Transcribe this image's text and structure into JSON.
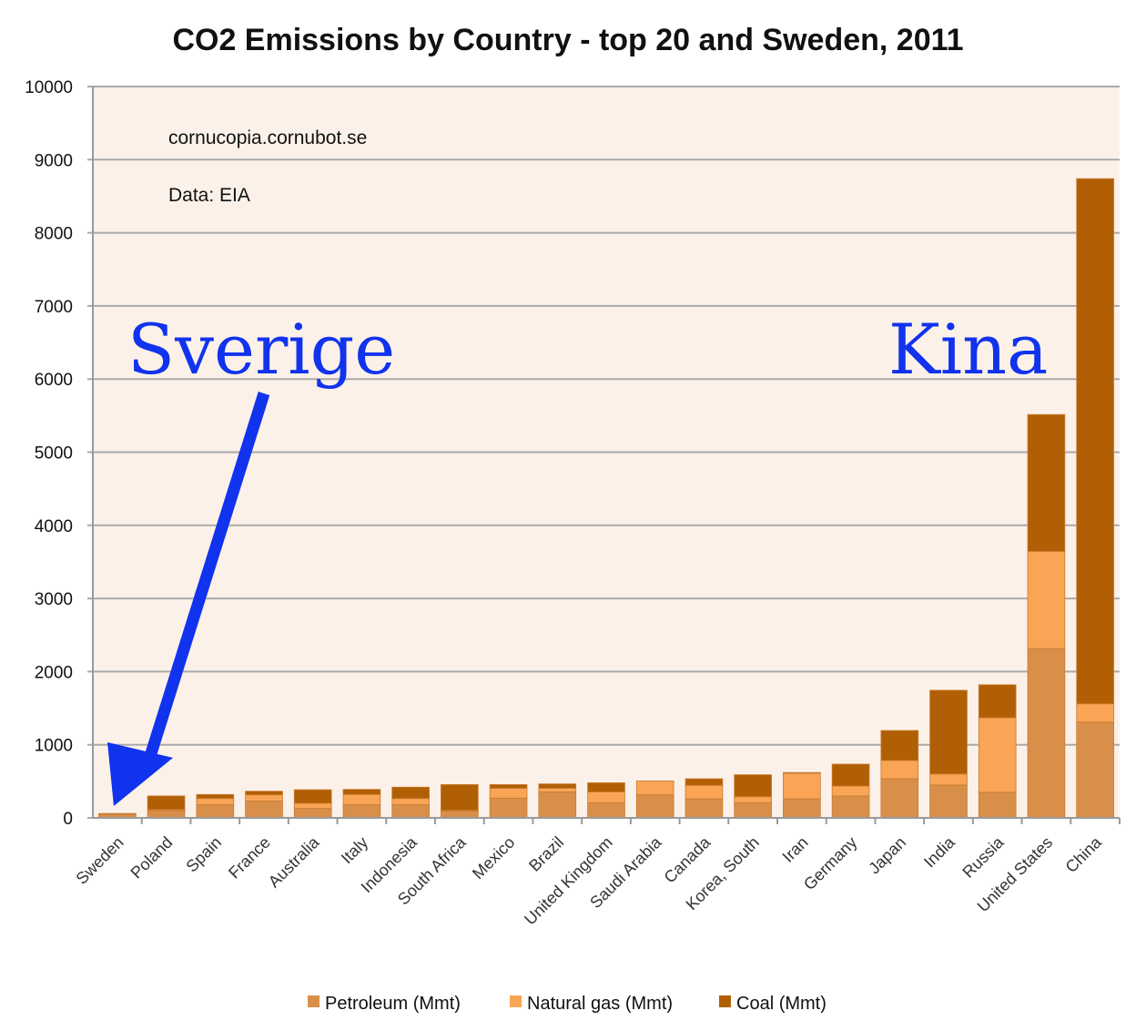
{
  "chart_data": {
    "type": "bar",
    "stacked": true,
    "title": "CO2 Emissions by Country - top 20 and Sweden, 2011",
    "xlabel": "",
    "ylabel": "",
    "ylim": [
      0,
      10000
    ],
    "yticks": [
      0,
      1000,
      2000,
      3000,
      4000,
      5000,
      6000,
      7000,
      8000,
      9000,
      10000
    ],
    "grid": true,
    "legend_position": "bottom",
    "categories": [
      "Sweden",
      "Poland",
      "Spain",
      "France",
      "Australia",
      "Italy",
      "Indonesia",
      "South Africa",
      "Mexico",
      "Brazil",
      "United Kingdom",
      "Saudi Arabia",
      "Canada",
      "Korea, South",
      "Iran",
      "Germany",
      "Japan",
      "India",
      "Russia",
      "United States",
      "China"
    ],
    "series": [
      {
        "name": "Petroleum (Mmt)",
        "color": "#d88f4a",
        "values": [
          50,
          100,
          180,
          230,
          130,
          180,
          180,
          95,
          270,
          355,
          205,
          315,
          260,
          205,
          260,
          300,
          535,
          450,
          350,
          2315,
          1310
        ]
      },
      {
        "name": "Natural gas (Mmt)",
        "color": "#f9a555",
        "values": [
          5,
          15,
          85,
          85,
          70,
          140,
          85,
          10,
          135,
          50,
          150,
          190,
          185,
          85,
          350,
          135,
          250,
          150,
          1020,
          1330,
          250
        ]
      },
      {
        "name": "Coal (Mmt)",
        "color": "#b15f05",
        "values": [
          5,
          185,
          55,
          50,
          185,
          70,
          155,
          350,
          50,
          60,
          125,
          0,
          90,
          300,
          10,
          300,
          410,
          1145,
          450,
          1870,
          7180
        ]
      }
    ],
    "annotations": [
      "cornucopia.cornubot.se",
      "Data: EIA"
    ],
    "callouts": {
      "left": "Sverige",
      "right": "Kina",
      "color": "#1133ee"
    },
    "plot_background": "#fcf1e9"
  }
}
